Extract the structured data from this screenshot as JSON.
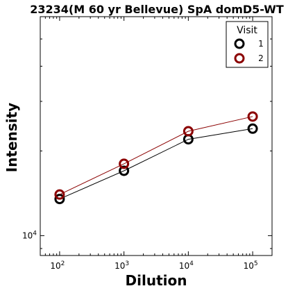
{
  "chart_data": {
    "type": "line",
    "title": "23234(M 60 yr Bellevue) SpA domD5-WT",
    "xlabel": "Dilution",
    "ylabel": "Intensity",
    "x_scale": "log",
    "y_scale": "log",
    "xlim": [
      50,
      200000
    ],
    "ylim": [
      8500,
      60000
    ],
    "x": [
      100,
      1000,
      10000,
      100000
    ],
    "x_ticks": [
      {
        "value": 100,
        "base": "10",
        "exp": "2"
      },
      {
        "value": 1000,
        "base": "10",
        "exp": "3"
      },
      {
        "value": 10000,
        "base": "10",
        "exp": "4"
      },
      {
        "value": 100000,
        "base": "10",
        "exp": "5"
      }
    ],
    "y_ticks": [
      {
        "value": 10000,
        "base": "10",
        "exp": "4"
      }
    ],
    "legend": {
      "title": "Visit",
      "placement": "top-right"
    },
    "grid": false,
    "series": [
      {
        "name": "1",
        "color": "#000000",
        "values": [
          13500,
          17000,
          22000,
          24000
        ]
      },
      {
        "name": "2",
        "color": "#8b0000",
        "values": [
          14000,
          18000,
          23500,
          26500
        ]
      }
    ]
  }
}
